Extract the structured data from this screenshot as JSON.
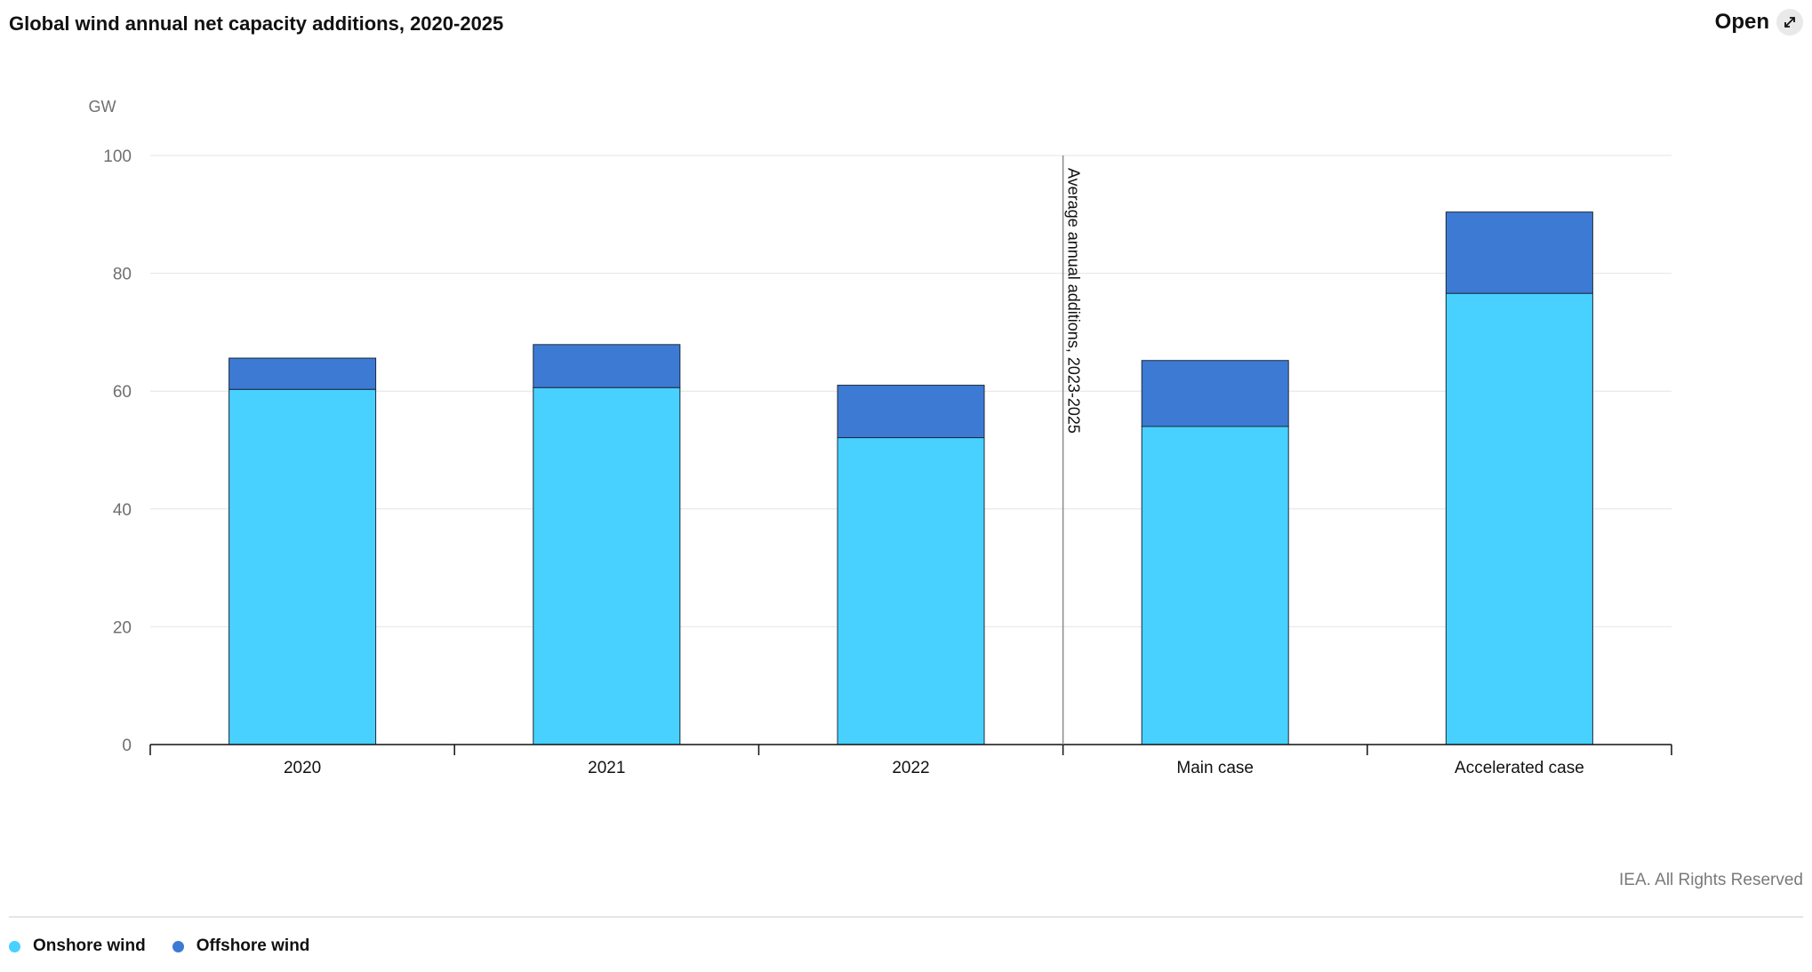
{
  "header": {
    "title": "Global wind annual net capacity additions, 2020-2025",
    "open_label": "Open",
    "open_icon": "expand-arrows-icon"
  },
  "footer": {
    "copyright": "IEA. All Rights Reserved"
  },
  "colors": {
    "onshore": "#48d1ff",
    "offshore": "#3d7ad4",
    "axis": "#111111",
    "grid": "#e4e4e4",
    "tick_text": "#6f6f6f"
  },
  "chart_data": {
    "type": "bar",
    "stacked": true,
    "title": "Global wind annual net capacity additions, 2020-2025",
    "ylabel": "GW",
    "xlabel": "",
    "ylim": [
      0,
      100
    ],
    "yticks": [
      0,
      20,
      40,
      60,
      80,
      100
    ],
    "grid": true,
    "legend_position": "bottom-left",
    "categories": [
      "2020",
      "2021",
      "2022",
      "Main case",
      "Accelerated case"
    ],
    "series": [
      {
        "name": "Onshore wind",
        "values": [
          60.3,
          60.6,
          52.1,
          54.0,
          76.6
        ]
      },
      {
        "name": "Offshore wind",
        "values": [
          5.3,
          7.3,
          8.9,
          11.2,
          13.8
        ]
      }
    ],
    "annotations": [
      {
        "text": "Average annual additions, 2023-2025",
        "between_categories": [
          "2022",
          "Main case"
        ]
      }
    ]
  }
}
